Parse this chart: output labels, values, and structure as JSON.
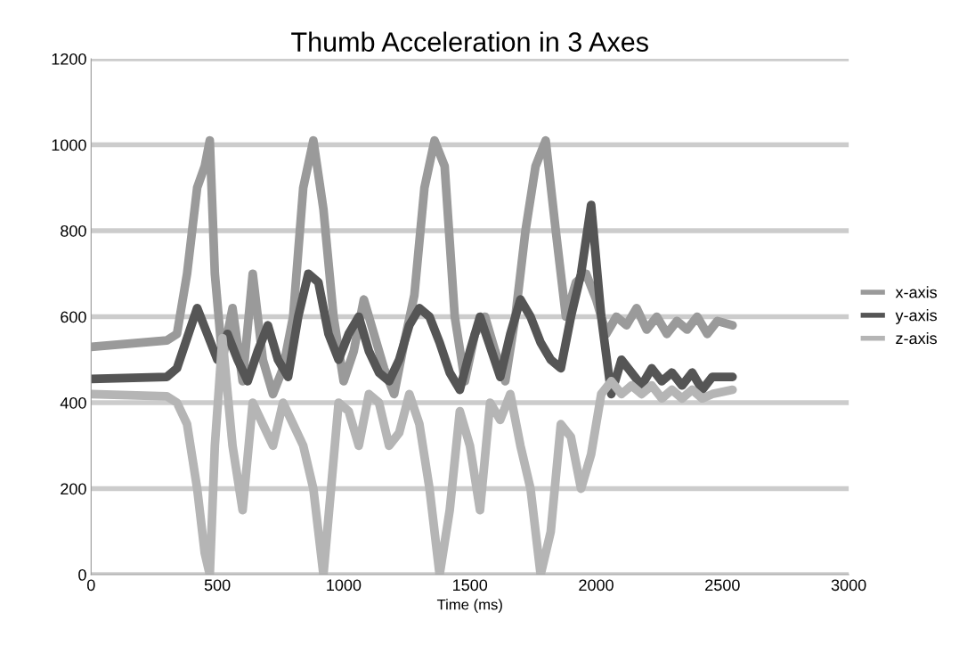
{
  "chart_data": {
    "type": "line",
    "title": "Thumb Acceleration in 3 Axes",
    "xlabel": "Time (ms)",
    "xlim": [
      0,
      3000
    ],
    "xticks": [
      0,
      500,
      1000,
      1500,
      2000,
      2500,
      3000
    ],
    "ylim": [
      0,
      1200
    ],
    "yticks": [
      0,
      200,
      400,
      600,
      800,
      1000,
      1200
    ],
    "grid": "y",
    "legend": "right",
    "marker": "none",
    "line_style": "solid",
    "series": [
      {
        "name": "x-axis",
        "color": "#9a9a9a",
        "x": [
          0,
          300,
          340,
          380,
          420,
          450,
          470,
          490,
          520,
          560,
          600,
          640,
          680,
          720,
          760,
          800,
          840,
          880,
          920,
          960,
          1000,
          1040,
          1080,
          1120,
          1160,
          1200,
          1240,
          1280,
          1320,
          1360,
          1400,
          1440,
          1480,
          1520,
          1560,
          1600,
          1640,
          1680,
          1720,
          1760,
          1800,
          1840,
          1880,
          1920,
          1960,
          2000,
          2040,
          2080,
          2120,
          2160,
          2200,
          2240,
          2280,
          2320,
          2360,
          2400,
          2440,
          2480,
          2540
        ],
        "values": [
          530,
          545,
          560,
          700,
          900,
          950,
          1010,
          700,
          500,
          620,
          450,
          700,
          500,
          420,
          480,
          600,
          900,
          1010,
          850,
          600,
          450,
          520,
          640,
          560,
          480,
          420,
          540,
          650,
          900,
          1010,
          950,
          600,
          450,
          560,
          600,
          520,
          450,
          600,
          800,
          950,
          1010,
          800,
          600,
          680,
          700,
          640,
          560,
          600,
          580,
          620,
          570,
          600,
          560,
          590,
          570,
          600,
          560,
          590,
          580
        ]
      },
      {
        "name": "y-axis",
        "color": "#555555",
        "x": [
          0,
          300,
          340,
          380,
          420,
          460,
          500,
          540,
          580,
          620,
          660,
          700,
          740,
          780,
          820,
          860,
          900,
          940,
          980,
          1020,
          1060,
          1100,
          1140,
          1180,
          1220,
          1260,
          1300,
          1340,
          1380,
          1420,
          1460,
          1500,
          1540,
          1580,
          1620,
          1660,
          1700,
          1740,
          1780,
          1820,
          1860,
          1900,
          1940,
          1980,
          2020,
          2060,
          2100,
          2140,
          2180,
          2220,
          2260,
          2300,
          2340,
          2380,
          2420,
          2460,
          2540
        ],
        "values": [
          455,
          460,
          480,
          550,
          620,
          560,
          500,
          560,
          500,
          450,
          520,
          580,
          500,
          460,
          600,
          700,
          680,
          560,
          500,
          560,
          600,
          520,
          470,
          450,
          500,
          580,
          620,
          600,
          540,
          470,
          430,
          520,
          600,
          530,
          460,
          560,
          640,
          600,
          540,
          500,
          480,
          600,
          700,
          860,
          600,
          420,
          500,
          470,
          440,
          480,
          450,
          470,
          440,
          470,
          430,
          460,
          460
        ]
      },
      {
        "name": "z-axis",
        "color": "#b5b5b5",
        "x": [
          0,
          300,
          340,
          380,
          420,
          450,
          470,
          490,
          520,
          560,
          600,
          640,
          680,
          720,
          760,
          800,
          840,
          880,
          920,
          950,
          980,
          1020,
          1060,
          1100,
          1140,
          1180,
          1220,
          1260,
          1300,
          1340,
          1380,
          1420,
          1460,
          1500,
          1540,
          1580,
          1620,
          1660,
          1700,
          1740,
          1780,
          1820,
          1860,
          1900,
          1940,
          1980,
          2020,
          2060,
          2100,
          2140,
          2180,
          2220,
          2260,
          2300,
          2340,
          2380,
          2420,
          2460,
          2540
        ],
        "values": [
          420,
          415,
          400,
          350,
          200,
          50,
          0,
          300,
          550,
          300,
          150,
          400,
          350,
          300,
          400,
          350,
          300,
          200,
          0,
          200,
          400,
          380,
          300,
          420,
          400,
          300,
          330,
          420,
          350,
          200,
          0,
          150,
          380,
          300,
          150,
          400,
          360,
          420,
          300,
          200,
          0,
          100,
          350,
          320,
          200,
          280,
          420,
          450,
          420,
          440,
          420,
          440,
          410,
          430,
          410,
          430,
          410,
          420,
          430
        ]
      }
    ]
  }
}
